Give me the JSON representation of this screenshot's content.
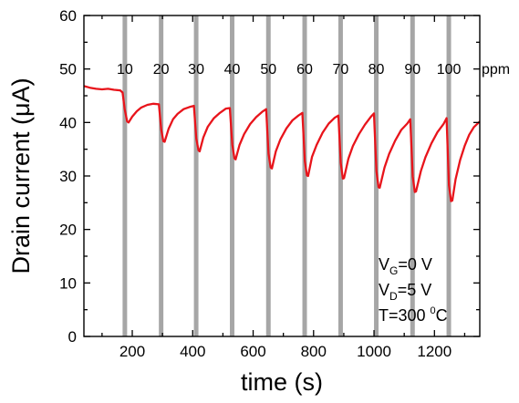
{
  "chart_data": {
    "type": "line",
    "xlabel": "time (s)",
    "ylabel": "Drain current (μA)",
    "xlim": [
      40,
      1350
    ],
    "ylim": [
      0,
      60
    ],
    "x_ticks": [
      200,
      400,
      600,
      800,
      1000,
      1200
    ],
    "y_ticks": [
      0,
      10,
      20,
      30,
      40,
      50,
      60
    ],
    "series_color": "#e8141b",
    "gas_band_color": "#a6a6a6",
    "gas_pulses": [
      {
        "start": 168,
        "end": 183,
        "label": "10"
      },
      {
        "start": 288,
        "end": 303,
        "label": "20"
      },
      {
        "start": 404,
        "end": 419,
        "label": "30"
      },
      {
        "start": 523,
        "end": 538,
        "label": "40"
      },
      {
        "start": 643,
        "end": 658,
        "label": "50"
      },
      {
        "start": 763,
        "end": 778,
        "label": "60"
      },
      {
        "start": 882,
        "end": 897,
        "label": "70"
      },
      {
        "start": 1000,
        "end": 1015,
        "label": "80"
      },
      {
        "start": 1120,
        "end": 1135,
        "label": "90"
      },
      {
        "start": 1240,
        "end": 1255,
        "label": "100"
      }
    ],
    "unit_label": "ppm",
    "series": [
      {
        "points": [
          [
            40,
            46.8
          ],
          [
            60,
            46.5
          ],
          [
            80,
            46.3
          ],
          [
            100,
            46.2
          ],
          [
            120,
            46.3
          ],
          [
            140,
            46.1
          ],
          [
            160,
            46.0
          ],
          [
            168,
            45.6
          ],
          [
            175,
            42.5
          ],
          [
            183,
            40.2
          ],
          [
            188,
            40.0
          ],
          [
            200,
            41.1
          ],
          [
            215,
            42.1
          ],
          [
            230,
            42.8
          ],
          [
            250,
            43.3
          ],
          [
            270,
            43.5
          ],
          [
            288,
            43.4
          ],
          [
            296,
            38.6
          ],
          [
            303,
            36.5
          ],
          [
            307,
            36.4
          ],
          [
            320,
            38.8
          ],
          [
            335,
            40.6
          ],
          [
            350,
            41.6
          ],
          [
            370,
            42.5
          ],
          [
            390,
            42.9
          ],
          [
            404,
            43.1
          ],
          [
            412,
            37.0
          ],
          [
            419,
            34.8
          ],
          [
            423,
            34.6
          ],
          [
            435,
            37.2
          ],
          [
            450,
            39.2
          ],
          [
            470,
            40.8
          ],
          [
            490,
            41.8
          ],
          [
            510,
            42.6
          ],
          [
            523,
            42.7
          ],
          [
            531,
            35.8
          ],
          [
            538,
            33.3
          ],
          [
            542,
            33.1
          ],
          [
            555,
            35.8
          ],
          [
            570,
            37.8
          ],
          [
            590,
            39.7
          ],
          [
            610,
            41.0
          ],
          [
            630,
            42.0
          ],
          [
            643,
            42.5
          ],
          [
            651,
            34.2
          ],
          [
            658,
            31.6
          ],
          [
            662,
            31.4
          ],
          [
            675,
            34.6
          ],
          [
            690,
            36.8
          ],
          [
            710,
            38.9
          ],
          [
            730,
            40.4
          ],
          [
            750,
            41.3
          ],
          [
            763,
            41.8
          ],
          [
            771,
            32.8
          ],
          [
            778,
            30.1
          ],
          [
            782,
            30.0
          ],
          [
            795,
            33.6
          ],
          [
            810,
            35.8
          ],
          [
            830,
            38.1
          ],
          [
            850,
            39.8
          ],
          [
            870,
            40.9
          ],
          [
            882,
            41.3
          ],
          [
            890,
            32.4
          ],
          [
            897,
            29.5
          ],
          [
            901,
            29.6
          ],
          [
            915,
            33.2
          ],
          [
            930,
            35.6
          ],
          [
            950,
            37.8
          ],
          [
            970,
            39.6
          ],
          [
            990,
            41.1
          ],
          [
            1000,
            41.7
          ],
          [
            1008,
            30.9
          ],
          [
            1015,
            27.9
          ],
          [
            1019,
            27.8
          ],
          [
            1035,
            31.6
          ],
          [
            1050,
            34.1
          ],
          [
            1070,
            36.6
          ],
          [
            1090,
            38.6
          ],
          [
            1110,
            39.8
          ],
          [
            1120,
            40.6
          ],
          [
            1128,
            29.9
          ],
          [
            1135,
            27.0
          ],
          [
            1139,
            27.1
          ],
          [
            1155,
            30.9
          ],
          [
            1170,
            33.5
          ],
          [
            1190,
            36.1
          ],
          [
            1210,
            38.2
          ],
          [
            1230,
            39.7
          ],
          [
            1240,
            40.8
          ],
          [
            1248,
            28.3
          ],
          [
            1255,
            25.3
          ],
          [
            1259,
            25.4
          ],
          [
            1270,
            29.4
          ],
          [
            1285,
            33.0
          ],
          [
            1300,
            35.6
          ],
          [
            1315,
            37.7
          ],
          [
            1330,
            39.1
          ],
          [
            1350,
            40.2
          ]
        ]
      }
    ],
    "annotations": {
      "vg": {
        "sym": "V",
        "sub": "G",
        "text": "=0 V"
      },
      "vd": {
        "sym": "V",
        "sub": "D",
        "text": "=5 V"
      },
      "temp": {
        "pre": "T=300 ",
        "sup": "0",
        "post": "C"
      }
    }
  }
}
